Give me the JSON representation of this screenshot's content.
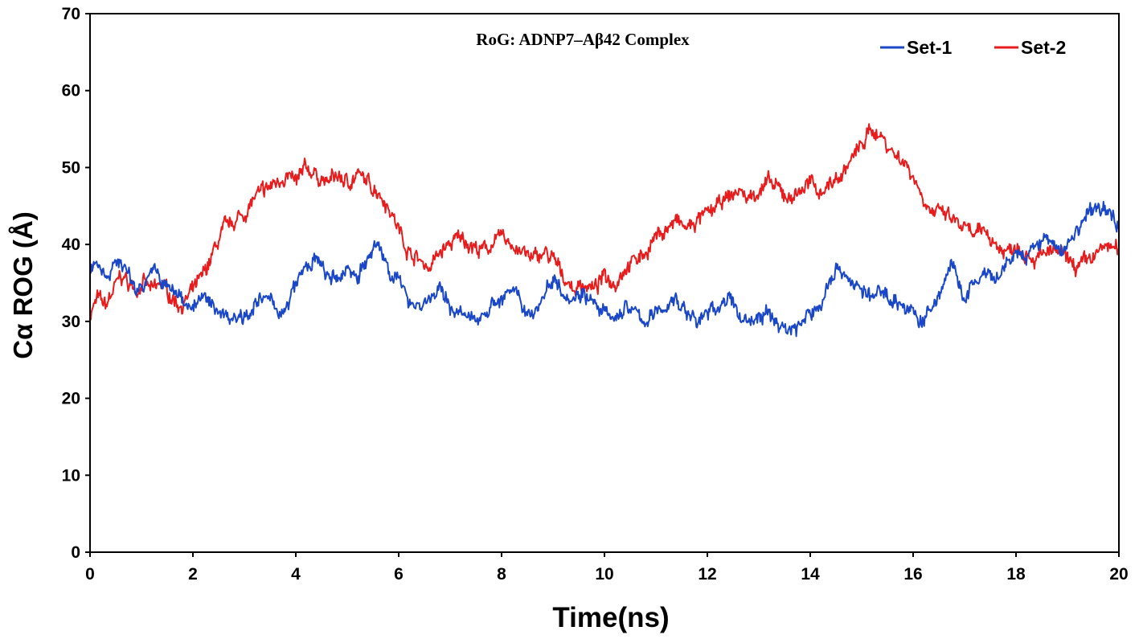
{
  "chart_data": {
    "type": "line",
    "title": "RoG: ADNP7–Aβ42 Complex",
    "xlabel": "Time(ns)",
    "ylabel": "Cα ROG (Å)",
    "xlim": [
      0,
      20
    ],
    "ylim": [
      0,
      70
    ],
    "xticks": [
      "0",
      "2",
      "4",
      "6",
      "8",
      "10",
      "12",
      "14",
      "16",
      "18",
      "20"
    ],
    "yticks": [
      "0",
      "10",
      "20",
      "30",
      "40",
      "50",
      "60",
      "70"
    ],
    "grid": false,
    "legend_position": "top-right",
    "series": [
      {
        "name": "Set-1",
        "color": "#1a47c8",
        "x": [
          0,
          0.15,
          0.3,
          0.45,
          0.6,
          0.75,
          0.9,
          1.05,
          1.2,
          1.4,
          1.6,
          1.8,
          2.0,
          2.2,
          2.4,
          2.6,
          2.8,
          3.0,
          3.2,
          3.4,
          3.6,
          3.8,
          4.0,
          4.2,
          4.4,
          4.6,
          4.8,
          5.0,
          5.2,
          5.4,
          5.6,
          5.8,
          6.0,
          6.2,
          6.4,
          6.6,
          6.8,
          7.0,
          7.2,
          7.4,
          7.6,
          7.8,
          8.0,
          8.2,
          8.4,
          8.6,
          8.8,
          9.0,
          9.2,
          9.4,
          9.6,
          9.8,
          10.0,
          10.2,
          10.4,
          10.6,
          10.8,
          11.0,
          11.2,
          11.4,
          11.6,
          11.8,
          12.0,
          12.2,
          12.4,
          12.6,
          12.8,
          13.0,
          13.2,
          13.4,
          13.6,
          13.8,
          14.0,
          14.2,
          14.4,
          14.6,
          14.8,
          15.0,
          15.2,
          15.4,
          15.6,
          15.8,
          16.0,
          16.2,
          16.4,
          16.6,
          16.75,
          16.9,
          17.0,
          17.2,
          17.4,
          17.6,
          17.8,
          18.0,
          18.2,
          18.4,
          18.6,
          18.8,
          19.0,
          19.2,
          19.4,
          19.6,
          19.8,
          20.0
        ],
        "y": [
          37,
          38,
          36,
          37,
          38,
          36,
          34,
          35,
          37,
          35,
          34,
          33,
          32,
          33,
          32,
          31,
          30.5,
          31,
          32,
          33,
          32,
          31,
          35,
          37,
          38,
          36,
          35,
          37,
          36,
          38,
          40,
          37,
          35,
          33,
          32,
          33,
          34,
          32,
          31,
          30,
          31,
          32,
          33,
          34,
          32,
          31,
          33,
          36,
          34,
          33,
          34,
          32,
          31,
          30,
          32,
          31,
          30,
          31,
          32,
          33,
          31,
          30,
          31,
          32,
          33,
          31,
          30,
          30.5,
          31,
          29.5,
          29,
          29.5,
          31,
          32,
          36,
          37,
          35,
          34,
          33,
          34,
          33,
          32,
          31,
          30,
          32,
          35,
          38,
          34,
          33,
          35,
          36,
          35,
          37,
          39,
          38,
          40,
          41,
          39,
          40,
          42,
          44,
          45,
          44,
          43
        ]
      },
      {
        "name": "Set-2",
        "color": "#e81c1c",
        "x": [
          0,
          0.15,
          0.3,
          0.45,
          0.6,
          0.75,
          0.9,
          1.05,
          1.2,
          1.4,
          1.6,
          1.8,
          2.0,
          2.2,
          2.4,
          2.6,
          2.8,
          3.0,
          3.2,
          3.4,
          3.6,
          3.8,
          4.0,
          4.2,
          4.4,
          4.6,
          4.8,
          5.0,
          5.2,
          5.4,
          5.6,
          5.8,
          6.0,
          6.2,
          6.4,
          6.6,
          6.8,
          7.0,
          7.2,
          7.4,
          7.6,
          7.8,
          8.0,
          8.2,
          8.4,
          8.6,
          8.8,
          9.0,
          9.2,
          9.4,
          9.6,
          9.8,
          10.0,
          10.2,
          10.4,
          10.6,
          10.8,
          11.0,
          11.2,
          11.4,
          11.6,
          11.8,
          12.0,
          12.2,
          12.4,
          12.6,
          12.8,
          13.0,
          13.2,
          13.4,
          13.6,
          13.8,
          14.0,
          14.2,
          14.4,
          14.6,
          14.8,
          15.0,
          15.2,
          15.4,
          15.6,
          15.8,
          16.0,
          16.2,
          16.4,
          16.6,
          16.8,
          17.0,
          17.2,
          17.4,
          17.6,
          17.8,
          18.0,
          18.2,
          18.4,
          18.6,
          18.8,
          19.0,
          19.2,
          19.4,
          19.6,
          19.8,
          20.0
        ],
        "y": [
          31,
          33,
          32,
          34,
          36,
          35,
          34,
          35,
          34,
          35,
          33,
          32,
          34,
          36,
          39,
          42,
          43,
          44,
          46,
          47,
          48,
          49,
          48,
          50,
          49,
          48,
          49,
          48,
          49,
          48,
          47,
          45,
          42,
          39,
          38,
          37,
          39,
          40,
          41,
          40,
          39,
          40,
          41,
          40,
          39,
          38,
          39,
          38,
          36,
          34,
          35,
          34,
          36,
          35,
          37,
          38,
          39,
          41,
          42,
          43,
          42,
          43,
          44,
          45,
          46,
          47,
          46,
          47,
          48,
          47,
          46,
          47,
          48,
          47,
          48,
          49,
          51,
          53,
          55,
          54,
          52,
          51,
          49,
          46,
          44,
          44,
          43,
          42,
          41,
          42,
          40,
          39,
          40,
          39,
          38,
          39,
          39,
          38,
          37,
          38,
          39,
          40,
          39
        ]
      }
    ]
  }
}
